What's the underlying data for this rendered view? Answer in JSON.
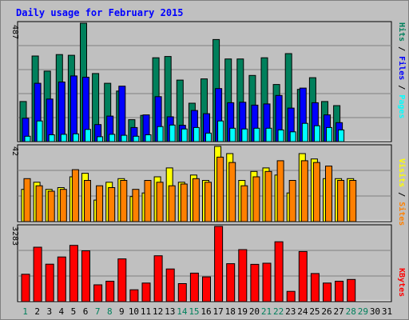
{
  "title": "Daily usage for February 2015",
  "colors": {
    "hits": "#00805c",
    "files": "#0000ff",
    "pages": "#00ffff",
    "visits": "#ffff00",
    "sites": "#ff8000",
    "kbytes": "#ff0000",
    "weekday_day": "#000000",
    "weekend_day": "#00805c",
    "title": "#0000ff",
    "panel_bg": "#c0c0c0"
  },
  "chart_data": [
    {
      "type": "bar",
      "panel": "top",
      "ymax_label": "487",
      "ylim": [
        0,
        487
      ],
      "categories": [
        "1",
        "2",
        "3",
        "4",
        "5",
        "6",
        "7",
        "8",
        "9",
        "10",
        "11",
        "12",
        "13",
        "14",
        "15",
        "16",
        "17",
        "18",
        "19",
        "20",
        "21",
        "22",
        "23",
        "24",
        "25",
        "26",
        "27",
        "28",
        "29",
        "30",
        "31"
      ],
      "weekend_days": [
        "1",
        "7",
        "8",
        "14",
        "15",
        "21",
        "22",
        "28",
        "29"
      ],
      "legend": [
        "Pages",
        "Files",
        "Hits"
      ],
      "series": [
        {
          "name": "Hits",
          "color_key": "hits",
          "values": [
            165,
            352,
            290,
            358,
            355,
            487,
            280,
            240,
            208,
            90,
            108,
            345,
            350,
            253,
            158,
            258,
            420,
            340,
            340,
            272,
            345,
            235,
            362,
            215,
            263,
            165,
            148,
            0,
            0,
            0,
            0
          ]
        },
        {
          "name": "Files",
          "color_key": "files",
          "values": [
            96,
            240,
            175,
            245,
            270,
            265,
            70,
            105,
            228,
            58,
            110,
            185,
            102,
            67,
            128,
            115,
            218,
            160,
            162,
            150,
            155,
            190,
            138,
            220,
            160,
            110,
            78,
            0,
            0,
            0,
            0
          ]
        },
        {
          "name": "Pages",
          "color_key": "pages",
          "values": [
            22,
            85,
            28,
            30,
            32,
            50,
            20,
            30,
            26,
            22,
            28,
            62,
            68,
            52,
            58,
            35,
            85,
            55,
            52,
            55,
            55,
            48,
            40,
            75,
            65,
            58,
            48,
            0,
            0,
            0,
            0
          ]
        }
      ]
    },
    {
      "type": "bar",
      "panel": "middle",
      "ymax_label": "42",
      "ylim": [
        0,
        42
      ],
      "categories": [
        "1",
        "2",
        "3",
        "4",
        "5",
        "6",
        "7",
        "8",
        "9",
        "10",
        "11",
        "12",
        "13",
        "14",
        "15",
        "16",
        "17",
        "18",
        "19",
        "20",
        "21",
        "22",
        "23",
        "24",
        "25",
        "26",
        "27",
        "28",
        "29",
        "30",
        "31"
      ],
      "legend": [
        "Sites",
        "Visits"
      ],
      "series": [
        {
          "name": "Visits",
          "color_key": "visits",
          "values": [
            18,
            22,
            18,
            19,
            25,
            27,
            12,
            22,
            24,
            14,
            16,
            25,
            30,
            22,
            26,
            23,
            42,
            38,
            23,
            28,
            30,
            26,
            16,
            38,
            35,
            24,
            24,
            24,
            0,
            0,
            0
          ]
        },
        {
          "name": "Sites",
          "color_key": "sites",
          "values": [
            24,
            20,
            17,
            18,
            29,
            23,
            20,
            19,
            23,
            18,
            23,
            22,
            20,
            21,
            24,
            22,
            36,
            33,
            20,
            25,
            28,
            34,
            23,
            34,
            33,
            31,
            23,
            23,
            0,
            0,
            0
          ]
        }
      ]
    },
    {
      "type": "bar",
      "panel": "bottom",
      "ymax_label": "3283",
      "ylim": [
        0,
        3283
      ],
      "categories": [
        "1",
        "2",
        "3",
        "4",
        "5",
        "6",
        "7",
        "8",
        "9",
        "10",
        "11",
        "12",
        "13",
        "14",
        "15",
        "16",
        "17",
        "18",
        "19",
        "20",
        "21",
        "22",
        "23",
        "24",
        "25",
        "26",
        "27",
        "28",
        "29",
        "30",
        "31"
      ],
      "legend": [
        "KBytes"
      ],
      "series": [
        {
          "name": "KBytes",
          "color_key": "kbytes",
          "values": [
            1195,
            2376,
            1634,
            1949,
            2455,
            2217,
            735,
            892,
            1866,
            517,
            810,
            2000,
            1424,
            787,
            1244,
            1079,
            3283,
            1656,
            2269,
            1627,
            1676,
            2612,
            446,
            2187,
            1227,
            810,
            892,
            969,
            0,
            0,
            0
          ]
        }
      ]
    }
  ]
}
